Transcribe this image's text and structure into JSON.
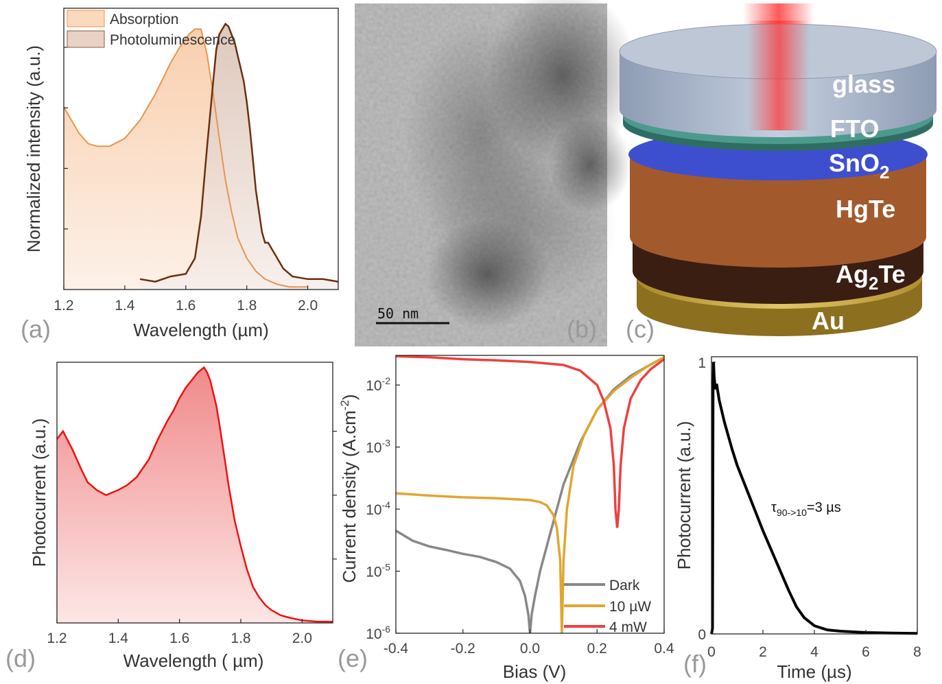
{
  "colors": {
    "absorption": "#e8944e",
    "absorption_fill": "#fbe0cb",
    "pl": "#6b2f0f",
    "pl_fill": "#e8d6cc",
    "photocurrent": "#ee1111",
    "photocurrent_fill": "#f3a6a6",
    "dark": "#888888",
    "w10": "#e0a630",
    "mw4": "#ee4040",
    "transient": "#000000"
  },
  "panels": {
    "a": {
      "label": "(a)"
    },
    "b": {
      "label": "(b)",
      "scalebar": "50 nm"
    },
    "c": {
      "label": "(c)",
      "layers": {
        "glass": "glass",
        "fto": "FTO",
        "sno2_main": "SnO",
        "sno2_sub": "2",
        "hgte": "HgTe",
        "ag2te_a": "Ag",
        "ag2te_sub": "2",
        "ag2te_b": "Te",
        "au": "Au"
      }
    },
    "d": {
      "label": "(d)"
    },
    "e": {
      "label": "(e)"
    },
    "f": {
      "label": "(f)"
    }
  },
  "chart_data": [
    {
      "id": "a",
      "type": "area",
      "xlabel": "Wavelength (µm)",
      "ylabel": "Normalized intensity (a.u.)",
      "xlim": [
        1.2,
        2.1
      ],
      "ylim": [
        0,
        1.08
      ],
      "xticks": [
        "1.2",
        "1.4",
        "1.6",
        "1.8",
        "2.0"
      ],
      "legend_position": "top-left",
      "series": [
        {
          "name": "Absorption",
          "x": [
            1.2,
            1.22,
            1.25,
            1.28,
            1.31,
            1.35,
            1.4,
            1.45,
            1.5,
            1.55,
            1.58,
            1.61,
            1.63,
            1.65,
            1.67,
            1.69,
            1.71,
            1.73,
            1.75,
            1.77,
            1.8,
            1.83,
            1.86,
            1.9,
            1.94,
            2.0
          ],
          "y": [
            0.7,
            0.66,
            0.6,
            0.56,
            0.55,
            0.55,
            0.58,
            0.65,
            0.75,
            0.87,
            0.93,
            0.98,
            1.0,
            1.0,
            0.9,
            0.75,
            0.58,
            0.42,
            0.3,
            0.2,
            0.12,
            0.07,
            0.04,
            0.02,
            0.01,
            0.01
          ]
        },
        {
          "name": "Photoluminescence",
          "x": [
            1.45,
            1.5,
            1.55,
            1.6,
            1.63,
            1.65,
            1.67,
            1.69,
            1.7,
            1.71,
            1.72,
            1.73,
            1.74,
            1.75,
            1.76,
            1.77,
            1.78,
            1.79,
            1.8,
            1.81,
            1.82,
            1.83,
            1.84,
            1.85,
            1.86,
            1.87,
            1.88,
            1.89,
            1.9,
            1.92,
            1.95,
            2.0,
            2.05,
            2.1
          ],
          "y": [
            0.04,
            0.03,
            0.05,
            0.06,
            0.12,
            0.28,
            0.55,
            0.8,
            0.92,
            0.98,
            1.0,
            1.02,
            1.01,
            0.98,
            0.95,
            0.9,
            0.85,
            0.8,
            0.72,
            0.62,
            0.5,
            0.38,
            0.3,
            0.22,
            0.18,
            0.18,
            0.16,
            0.14,
            0.12,
            0.08,
            0.05,
            0.04,
            0.04,
            0.03
          ]
        }
      ]
    },
    {
      "id": "d",
      "type": "area",
      "xlabel": "Wavelength ( µm)",
      "ylabel": "Photocurrent (a.u.)",
      "xlim": [
        1.2,
        2.1
      ],
      "ylim": [
        0,
        1.02
      ],
      "xticks": [
        "1.2",
        "1.4",
        "1.6",
        "1.8",
        "2.0"
      ],
      "series": [
        {
          "name": "",
          "x": [
            1.2,
            1.22,
            1.25,
            1.28,
            1.3,
            1.33,
            1.36,
            1.4,
            1.43,
            1.46,
            1.5,
            1.53,
            1.56,
            1.58,
            1.6,
            1.62,
            1.64,
            1.66,
            1.67,
            1.68,
            1.69,
            1.7,
            1.71,
            1.72,
            1.73,
            1.74,
            1.75,
            1.76,
            1.77,
            1.78,
            1.8,
            1.82,
            1.84,
            1.86,
            1.88,
            1.9,
            1.93,
            1.96,
            2.0,
            2.05,
            2.1
          ],
          "y": [
            0.72,
            0.75,
            0.68,
            0.6,
            0.55,
            0.52,
            0.5,
            0.52,
            0.54,
            0.57,
            0.64,
            0.72,
            0.79,
            0.83,
            0.88,
            0.92,
            0.95,
            0.98,
            0.99,
            1.0,
            0.98,
            0.95,
            0.9,
            0.85,
            0.78,
            0.7,
            0.62,
            0.54,
            0.47,
            0.4,
            0.3,
            0.21,
            0.14,
            0.1,
            0.07,
            0.05,
            0.03,
            0.02,
            0.01,
            0.005,
            0.005
          ]
        }
      ]
    },
    {
      "id": "e",
      "type": "line",
      "xlabel": "Bias (V)",
      "ylabel": "Current density (A.cm",
      "ylabel_sup": "-2",
      "ylabel_close": ")",
      "yscale": "log",
      "xlim": [
        -0.4,
        0.4
      ],
      "ylim": [
        1e-06,
        0.03
      ],
      "xticks": [
        "-0.4",
        "-0.2",
        "0.0",
        "0.2",
        "0.4"
      ],
      "yticks": [
        {
          "base": "10",
          "exp": "-6"
        },
        {
          "base": "10",
          "exp": "-5"
        },
        {
          "base": "10",
          "exp": "-4"
        },
        {
          "base": "10",
          "exp": "-3"
        },
        {
          "base": "10",
          "exp": "-2"
        }
      ],
      "legend_position": "bottom-right",
      "series": [
        {
          "name": "Dark",
          "x": [
            -0.4,
            -0.35,
            -0.3,
            -0.25,
            -0.2,
            -0.15,
            -0.1,
            -0.06,
            -0.03,
            -0.015,
            -0.005,
            0.0,
            0.005,
            0.015,
            0.03,
            0.06,
            0.1,
            0.15,
            0.2,
            0.25,
            0.3,
            0.35,
            0.4
          ],
          "y": [
            4.5e-05,
            3.1e-05,
            2.5e-05,
            2.2e-05,
            1.9e-05,
            1.7e-05,
            1.4e-05,
            1.1e-05,
            7e-06,
            4e-06,
            2e-06,
            1e-06,
            2e-06,
            4e-06,
            1e-05,
            4e-05,
            0.00025,
            0.0012,
            0.004,
            0.0085,
            0.014,
            0.02,
            0.028
          ]
        },
        {
          "name": "10 µW",
          "x": [
            -0.4,
            -0.3,
            -0.2,
            -0.1,
            0.0,
            0.03,
            0.05,
            0.07,
            0.08,
            0.09,
            0.095,
            0.1,
            0.11,
            0.13,
            0.16,
            0.2,
            0.25,
            0.3,
            0.35,
            0.4
          ],
          "y": [
            0.00018,
            0.000165,
            0.000155,
            0.00015,
            0.00014,
            0.00013,
            0.000115,
            8e-05,
            5e-05,
            1.5e-05,
            1e-06,
            1.5e-05,
            0.0001,
            0.0005,
            0.0015,
            0.004,
            0.008,
            0.013,
            0.02,
            0.028
          ]
        },
        {
          "name": "4 mW",
          "x": [
            -0.4,
            -0.3,
            -0.2,
            -0.1,
            0.0,
            0.1,
            0.15,
            0.2,
            0.22,
            0.24,
            0.25,
            0.255,
            0.26,
            0.265,
            0.27,
            0.28,
            0.3,
            0.33,
            0.36,
            0.4
          ],
          "y": [
            0.029,
            0.028,
            0.026,
            0.025,
            0.0235,
            0.021,
            0.017,
            0.01,
            0.0055,
            0.002,
            0.0005,
            0.0001,
            5e-05,
            0.0001,
            0.0005,
            0.002,
            0.006,
            0.012,
            0.018,
            0.026
          ]
        }
      ]
    },
    {
      "id": "f",
      "type": "line",
      "xlabel": "Time (µs)",
      "ylabel": "Photocurrent (a.u.)",
      "xlim": [
        0,
        8
      ],
      "ylim": [
        0,
        1.02
      ],
      "xticks": [
        "0",
        "2",
        "4",
        "6",
        "8"
      ],
      "yticks": [
        "0",
        "1"
      ],
      "annotation": {
        "tau": "τ",
        "sub": "90->10",
        "rest": "=3 µs"
      },
      "series": [
        {
          "name": "",
          "x": [
            0,
            0.04,
            0.06,
            0.08,
            0.1,
            0.15,
            0.2,
            0.3,
            0.5,
            0.8,
            1.0,
            1.5,
            2.0,
            2.5,
            3.0,
            3.3,
            3.6,
            4.0,
            4.5,
            5.0,
            6.0,
            7.0,
            8.0
          ],
          "y": [
            0,
            0.02,
            0.9,
            1.0,
            0.95,
            0.9,
            0.92,
            0.86,
            0.78,
            0.68,
            0.62,
            0.5,
            0.38,
            0.27,
            0.16,
            0.1,
            0.06,
            0.03,
            0.015,
            0.01,
            0.005,
            0.003,
            0.002
          ]
        }
      ]
    }
  ]
}
